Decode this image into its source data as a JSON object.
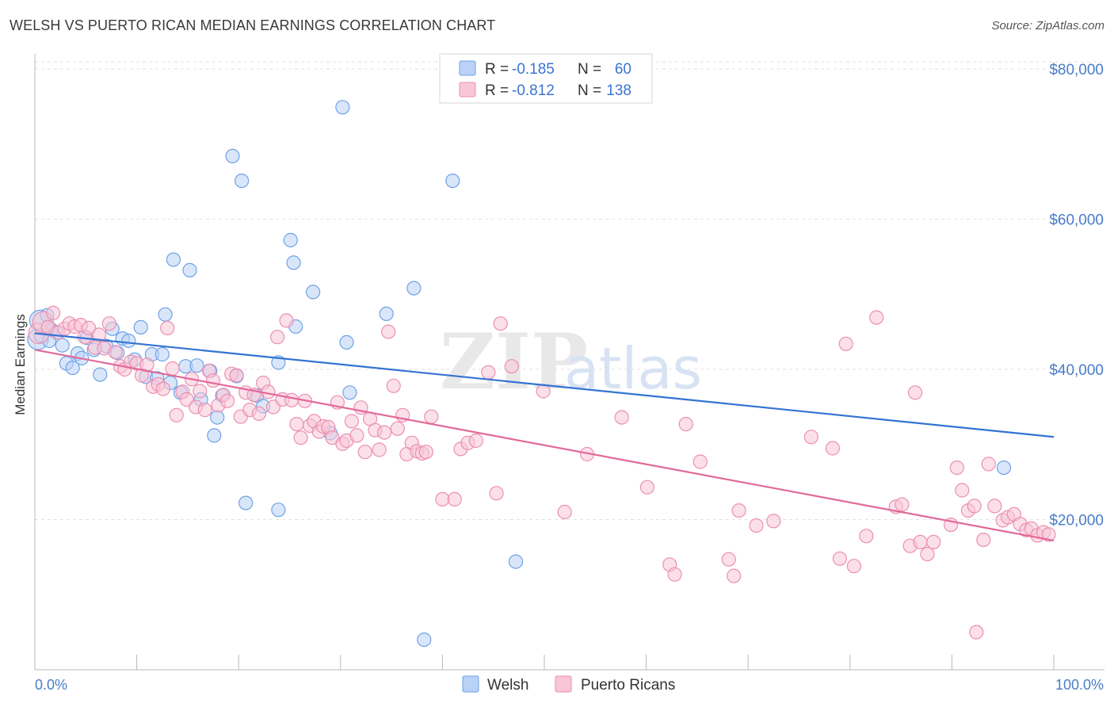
{
  "title": "WELSH VS PUERTO RICAN MEDIAN EARNINGS CORRELATION CHART",
  "source": "Source: ZipAtlas.com",
  "watermark": {
    "zip": "ZIP",
    "atlas": "atlas"
  },
  "legend_box": {
    "rows": [
      {
        "r_label": "R =",
        "r_value": "-0.185",
        "n_label": "N =",
        "n_value": "60",
        "color": "#6fa2e6",
        "fill": "#b9d2f5"
      },
      {
        "r_label": "R =",
        "r_value": "-0.812",
        "n_label": "N =",
        "n_value": "138",
        "color": "#ec8fb0",
        "fill": "#f8c6d7"
      }
    ]
  },
  "bottom_legend": [
    {
      "label": "Welsh",
      "color": "#6fa2e6",
      "fill": "#b9d2f5"
    },
    {
      "label": "Puerto Ricans",
      "color": "#ec8fb0",
      "fill": "#f8c6d7"
    }
  ],
  "chart_data": {
    "type": "scatter",
    "title": "WELSH VS PUERTO RICAN MEDIAN EARNINGS CORRELATION CHART",
    "xlabel": "",
    "ylabel": "Median Earnings",
    "xlim": [
      0,
      100
    ],
    "ylim": [
      0,
      82000
    ],
    "x_tick_labels": [
      "0.0%",
      "100.0%"
    ],
    "y_ticks": [
      20000,
      40000,
      60000,
      80000
    ],
    "y_tick_labels": [
      "$20,000",
      "$40,000",
      "$60,000",
      "$80,000"
    ],
    "grid": true,
    "legend_position": "top-center",
    "series": [
      {
        "name": "Welsh",
        "color": "#6fa2e6",
        "fill": "#b9d2f5",
        "trend": {
          "x": [
            0,
            100
          ],
          "y": [
            44800,
            31000
          ],
          "color": "#3373d3"
        },
        "points": [
          [
            0.3,
            44000
          ],
          [
            0.5,
            46500
          ],
          [
            1.2,
            47200
          ],
          [
            1.6,
            45300
          ],
          [
            2.1,
            44900
          ],
          [
            2.7,
            43200
          ],
          [
            3.1,
            40800
          ],
          [
            3.7,
            40200
          ],
          [
            4.2,
            42100
          ],
          [
            4.6,
            41500
          ],
          [
            5.1,
            44200
          ],
          [
            5.8,
            42600
          ],
          [
            6.4,
            39300
          ],
          [
            7.0,
            43100
          ],
          [
            7.6,
            45400
          ],
          [
            8.1,
            42200
          ],
          [
            8.6,
            44100
          ],
          [
            9.2,
            43800
          ],
          [
            9.8,
            41300
          ],
          [
            10.4,
            45600
          ],
          [
            10.9,
            39000
          ],
          [
            11.5,
            42000
          ],
          [
            12.0,
            38800
          ],
          [
            12.5,
            42000
          ],
          [
            12.8,
            47300
          ],
          [
            13.3,
            38200
          ],
          [
            13.6,
            54600
          ],
          [
            14.3,
            36900
          ],
          [
            14.8,
            40400
          ],
          [
            15.2,
            53200
          ],
          [
            15.9,
            40500
          ],
          [
            16.3,
            36000
          ],
          [
            17.2,
            39800
          ],
          [
            17.6,
            31200
          ],
          [
            17.9,
            33600
          ],
          [
            18.4,
            36500
          ],
          [
            19.4,
            68400
          ],
          [
            19.8,
            39100
          ],
          [
            20.3,
            65100
          ],
          [
            20.7,
            22200
          ],
          [
            21.8,
            36500
          ],
          [
            22.4,
            35100
          ],
          [
            23.9,
            21300
          ],
          [
            23.9,
            40900
          ],
          [
            25.1,
            57200
          ],
          [
            25.4,
            54200
          ],
          [
            25.6,
            45700
          ],
          [
            27.3,
            50300
          ],
          [
            29.0,
            31500
          ],
          [
            30.2,
            74900
          ],
          [
            30.6,
            43600
          ],
          [
            30.9,
            36900
          ],
          [
            34.5,
            47400
          ],
          [
            37.2,
            50800
          ],
          [
            38.2,
            4000
          ],
          [
            41.0,
            65100
          ],
          [
            47.2,
            14400
          ],
          [
            95.1,
            26900
          ],
          [
            0.6,
            44500
          ],
          [
            1.4,
            43800
          ]
        ]
      },
      {
        "name": "Puerto Ricans",
        "color": "#ec8fb0",
        "fill": "#f8c6d7",
        "trend": {
          "x": [
            0,
            100
          ],
          "y": [
            42600,
            17200
          ],
          "color": "#e3699a"
        },
        "points": [
          [
            0.4,
            44800
          ],
          [
            0.8,
            46300
          ],
          [
            1.3,
            45600
          ],
          [
            1.8,
            47500
          ],
          [
            2.3,
            44900
          ],
          [
            2.9,
            45400
          ],
          [
            3.4,
            46100
          ],
          [
            3.9,
            45700
          ],
          [
            4.5,
            45900
          ],
          [
            4.9,
            44300
          ],
          [
            5.3,
            45500
          ],
          [
            5.9,
            42900
          ],
          [
            6.3,
            44600
          ],
          [
            6.8,
            42800
          ],
          [
            7.3,
            46100
          ],
          [
            7.9,
            42300
          ],
          [
            8.4,
            40400
          ],
          [
            8.8,
            40000
          ],
          [
            9.4,
            41000
          ],
          [
            10.0,
            40800
          ],
          [
            10.5,
            39200
          ],
          [
            11.0,
            40600
          ],
          [
            11.6,
            37700
          ],
          [
            12.1,
            38000
          ],
          [
            12.6,
            37400
          ],
          [
            13.0,
            45500
          ],
          [
            13.5,
            40100
          ],
          [
            13.9,
            33900
          ],
          [
            14.5,
            37000
          ],
          [
            14.9,
            36000
          ],
          [
            15.4,
            38700
          ],
          [
            15.8,
            35000
          ],
          [
            16.2,
            37100
          ],
          [
            16.7,
            34600
          ],
          [
            17.1,
            39800
          ],
          [
            17.5,
            38500
          ],
          [
            18.0,
            35200
          ],
          [
            18.5,
            36600
          ],
          [
            18.9,
            35800
          ],
          [
            19.3,
            39400
          ],
          [
            19.8,
            39200
          ],
          [
            20.2,
            33700
          ],
          [
            20.7,
            36900
          ],
          [
            21.1,
            34600
          ],
          [
            21.5,
            36600
          ],
          [
            22.0,
            34100
          ],
          [
            22.4,
            38200
          ],
          [
            22.9,
            37000
          ],
          [
            23.4,
            35000
          ],
          [
            23.8,
            44300
          ],
          [
            24.3,
            36000
          ],
          [
            24.7,
            46500
          ],
          [
            25.2,
            35900
          ],
          [
            25.7,
            32700
          ],
          [
            26.1,
            30900
          ],
          [
            26.5,
            35800
          ],
          [
            27.0,
            32500
          ],
          [
            27.4,
            33100
          ],
          [
            27.9,
            31700
          ],
          [
            28.3,
            32400
          ],
          [
            28.8,
            32300
          ],
          [
            29.2,
            30900
          ],
          [
            29.7,
            35600
          ],
          [
            30.2,
            30100
          ],
          [
            30.6,
            30500
          ],
          [
            31.1,
            33100
          ],
          [
            31.6,
            31200
          ],
          [
            32.0,
            34900
          ],
          [
            32.4,
            29000
          ],
          [
            32.9,
            33400
          ],
          [
            33.4,
            31900
          ],
          [
            33.8,
            29300
          ],
          [
            34.3,
            31600
          ],
          [
            34.7,
            45000
          ],
          [
            35.2,
            37800
          ],
          [
            35.6,
            32100
          ],
          [
            36.1,
            33900
          ],
          [
            36.5,
            28700
          ],
          [
            37.0,
            30200
          ],
          [
            37.5,
            29100
          ],
          [
            38.0,
            28800
          ],
          [
            38.4,
            29000
          ],
          [
            38.9,
            33700
          ],
          [
            40.0,
            22700
          ],
          [
            41.2,
            22700
          ],
          [
            41.8,
            29400
          ],
          [
            42.5,
            30200
          ],
          [
            43.3,
            30500
          ],
          [
            44.5,
            39600
          ],
          [
            45.3,
            23500
          ],
          [
            45.7,
            46100
          ],
          [
            46.8,
            40400
          ],
          [
            49.9,
            37100
          ],
          [
            52.0,
            21000
          ],
          [
            54.2,
            28700
          ],
          [
            57.6,
            33600
          ],
          [
            60.1,
            24300
          ],
          [
            62.3,
            14000
          ],
          [
            62.8,
            12700
          ],
          [
            63.9,
            32700
          ],
          [
            65.3,
            27700
          ],
          [
            68.1,
            14700
          ],
          [
            68.6,
            12500
          ],
          [
            69.1,
            21200
          ],
          [
            70.8,
            19200
          ],
          [
            72.5,
            19800
          ],
          [
            76.2,
            31000
          ],
          [
            78.3,
            29500
          ],
          [
            79.0,
            14800
          ],
          [
            79.6,
            43400
          ],
          [
            80.4,
            13800
          ],
          [
            81.6,
            17800
          ],
          [
            82.6,
            46900
          ],
          [
            84.5,
            21700
          ],
          [
            85.1,
            22000
          ],
          [
            85.9,
            16500
          ],
          [
            86.4,
            36900
          ],
          [
            86.9,
            17000
          ],
          [
            87.6,
            15400
          ],
          [
            88.2,
            17000
          ],
          [
            89.9,
            19300
          ],
          [
            90.5,
            26900
          ],
          [
            91.0,
            23900
          ],
          [
            91.6,
            21200
          ],
          [
            92.2,
            21800
          ],
          [
            92.4,
            5000
          ],
          [
            93.1,
            17300
          ],
          [
            93.6,
            27400
          ],
          [
            94.2,
            21800
          ],
          [
            95.0,
            19900
          ],
          [
            95.5,
            20300
          ],
          [
            96.1,
            20700
          ],
          [
            96.7,
            19400
          ],
          [
            97.3,
            18600
          ],
          [
            97.8,
            18800
          ],
          [
            98.4,
            17900
          ],
          [
            99.0,
            18300
          ],
          [
            99.5,
            18000
          ]
        ]
      }
    ]
  }
}
